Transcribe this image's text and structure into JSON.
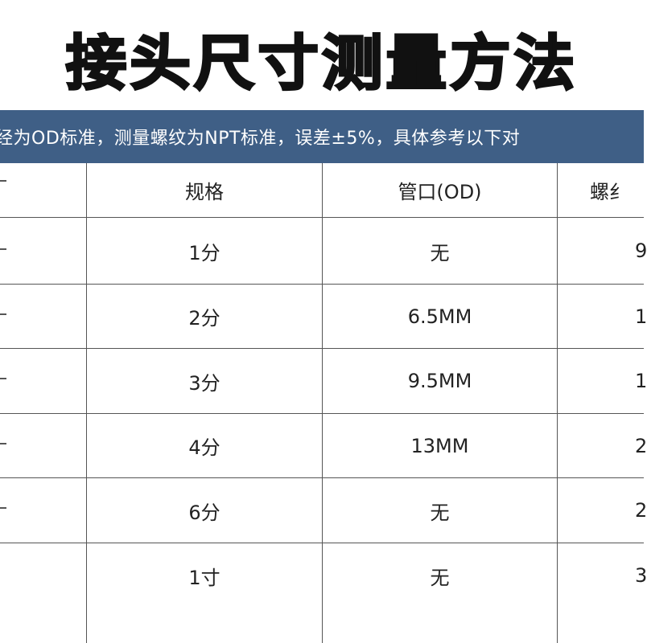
{
  "title": "接头尺寸测量方法",
  "banner": {
    "text": "经为OD标准，测量螺纹为NPT标准，误差±5%，具体参考以下对"
  },
  "table": {
    "headers": [
      "规格",
      "管口(OD)",
      "螺纟"
    ],
    "rows": [
      {
        "spec": "1分",
        "od": "无",
        "thread": "9"
      },
      {
        "spec": "2分",
        "od": "6.5MM",
        "thread": "1"
      },
      {
        "spec": "3分",
        "od": "9.5MM",
        "thread": "1"
      },
      {
        "spec": "4分",
        "od": "13MM",
        "thread": "2"
      },
      {
        "spec": "6分",
        "od": "无",
        "thread": "2"
      },
      {
        "spec": "1寸",
        "od": "无",
        "thread": "3"
      }
    ]
  },
  "colors": {
    "banner_bg": "#3f5f86",
    "banner_text": "#ffffff",
    "grid": "#555555",
    "title": "#111111"
  }
}
